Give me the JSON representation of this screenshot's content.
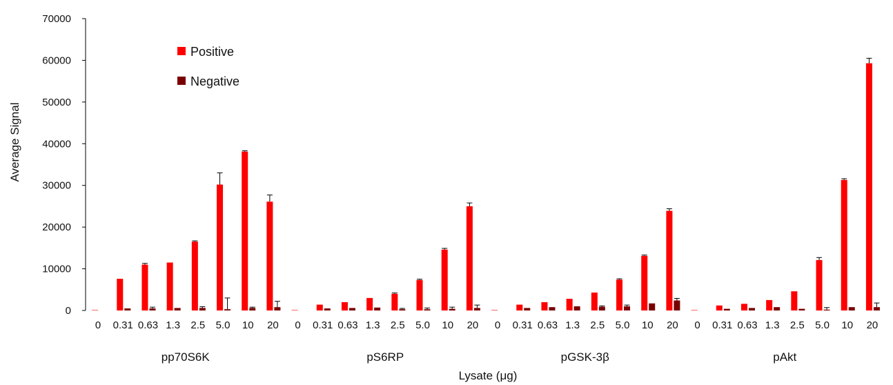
{
  "chart_data": {
    "type": "bar",
    "ylabel": "Average Signal",
    "xlabel": "Lysate (μg)",
    "ylim": [
      0,
      70000
    ],
    "yticks": [
      0,
      10000,
      20000,
      30000,
      40000,
      50000,
      60000,
      70000
    ],
    "legend_position": "top-left",
    "grid": false,
    "groups": [
      "pp70S6K",
      "pS6RP",
      "pGSK-3β",
      "pAkt"
    ],
    "categories": [
      "0",
      "0.31",
      "0.63",
      "1.3",
      "2.5",
      "5.0",
      "10",
      "20"
    ],
    "series": [
      {
        "name": "Positive",
        "color": "#ff0000",
        "values": [
          [
            100,
            7600,
            11000,
            11500,
            16500,
            30200,
            38100,
            26100
          ],
          [
            100,
            1400,
            2000,
            3000,
            4000,
            7300,
            14600,
            25000
          ],
          [
            100,
            1400,
            2000,
            2800,
            4300,
            7400,
            13100,
            23900
          ],
          [
            100,
            1200,
            1600,
            2500,
            4600,
            12100,
            31300,
            59300
          ]
        ],
        "errors": [
          [
            0,
            0,
            300,
            0,
            200,
            2800,
            200,
            1600
          ],
          [
            0,
            0,
            0,
            0,
            200,
            200,
            300,
            800
          ],
          [
            0,
            0,
            0,
            0,
            0,
            200,
            200,
            500
          ],
          [
            0,
            0,
            0,
            0,
            0,
            600,
            300,
            1200
          ]
        ]
      },
      {
        "name": "Negative",
        "color": "#7a0000",
        "values": [
          [
            0,
            500,
            500,
            600,
            600,
            300,
            600,
            800
          ],
          [
            0,
            500,
            600,
            700,
            300,
            300,
            400,
            600
          ],
          [
            0,
            600,
            800,
            1000,
            900,
            1000,
            1700,
            2400
          ],
          [
            0,
            400,
            600,
            800,
            400,
            200,
            800,
            800
          ]
        ],
        "errors": [
          [
            0,
            0,
            300,
            0,
            300,
            2700,
            200,
            1400
          ],
          [
            0,
            0,
            0,
            0,
            200,
            300,
            400,
            700
          ],
          [
            0,
            0,
            0,
            0,
            200,
            300,
            0,
            500
          ],
          [
            0,
            0,
            0,
            0,
            0,
            500,
            0,
            1000
          ]
        ]
      }
    ]
  }
}
